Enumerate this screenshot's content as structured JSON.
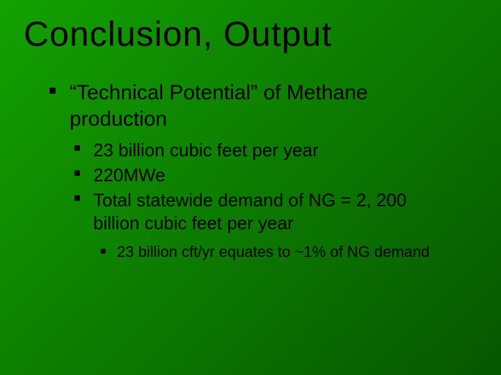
{
  "slide": {
    "background_gradient": {
      "from": "#13a100",
      "to": "#065600",
      "angle_deg": 135
    },
    "title": {
      "text": "Conclusion, Output",
      "font_family": "Impact",
      "font_size_pt": 40,
      "color": "#000000"
    },
    "body": {
      "font_family": "Arial",
      "text_color": "#000000",
      "bullet_char": "■",
      "bullet_color": "#000000",
      "lvl1_fontsize_pt": 24,
      "lvl2_fontsize_pt": 20,
      "lvl3_fontsize_pt": 17,
      "items": [
        {
          "text": "“Technical Potential” of Methane production",
          "children": [
            {
              "text": "23 billion cubic feet per year"
            },
            {
              "text": "220MWe"
            },
            {
              "text": "Total statewide demand of NG = 2, 200 billion cubic feet per year",
              "children": [
                {
                  "text": "23 billion cft/yr equates to ~1% of NG demand"
                }
              ]
            }
          ]
        }
      ]
    }
  }
}
